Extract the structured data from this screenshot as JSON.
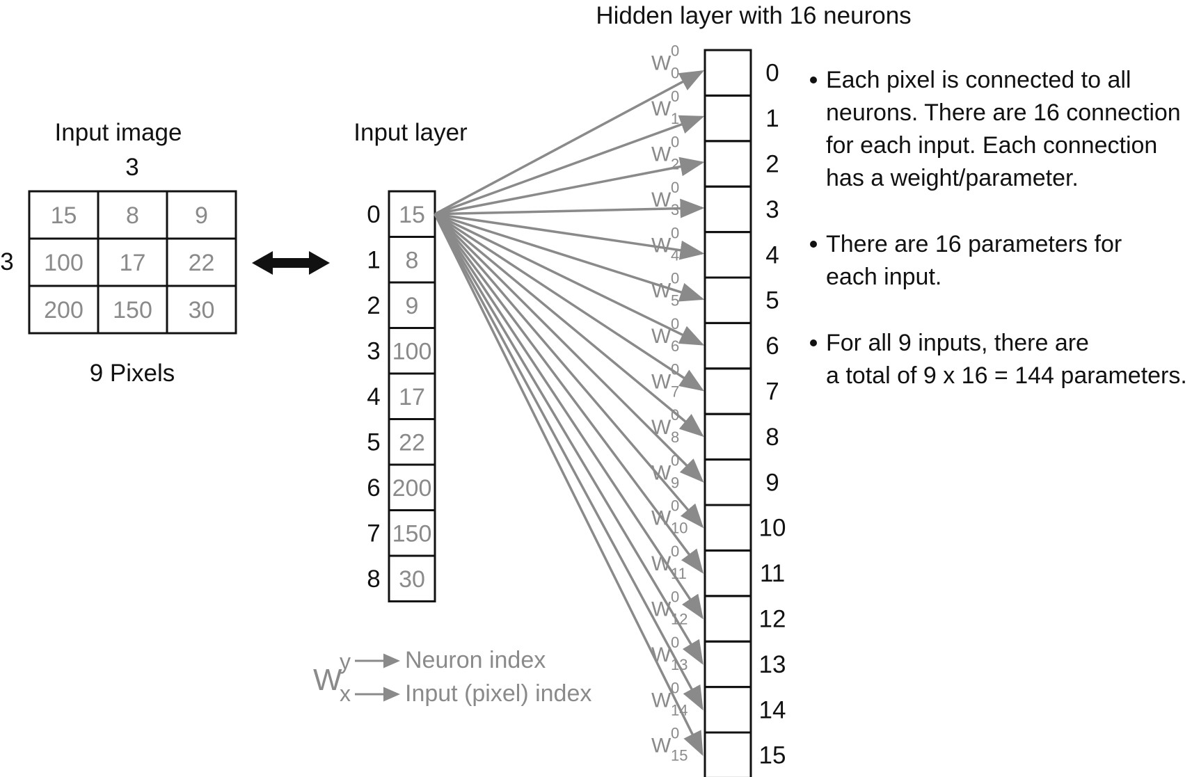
{
  "input_image": {
    "title": "Input image",
    "cols_label": "3",
    "rows_label": "3",
    "caption": "9 Pixels",
    "grid": [
      [
        "15",
        "8",
        "9"
      ],
      [
        "100",
        "17",
        "22"
      ],
      [
        "200",
        "150",
        "30"
      ]
    ]
  },
  "input_layer": {
    "title": "Input layer",
    "indices": [
      "0",
      "1",
      "2",
      "3",
      "4",
      "5",
      "6",
      "7",
      "8"
    ],
    "values": [
      "15",
      "8",
      "9",
      "100",
      "17",
      "22",
      "200",
      "150",
      "30"
    ]
  },
  "hidden_layer": {
    "title": "Hidden layer with 16 neurons",
    "indices": [
      "0",
      "1",
      "2",
      "3",
      "4",
      "5",
      "6",
      "7",
      "8",
      "9",
      "10",
      "11",
      "12",
      "13",
      "14",
      "15"
    ]
  },
  "weight_labels": {
    "symbol": "W",
    "superscript": "0",
    "subscripts": [
      "0",
      "1",
      "2",
      "3",
      "4",
      "5",
      "6",
      "7",
      "8",
      "9",
      "10",
      "11",
      "12",
      "13",
      "14",
      "15"
    ]
  },
  "legend": {
    "symbol": "W",
    "sup": "y",
    "sub": "x",
    "neuron_text": "Neuron index",
    "input_text": "Input (pixel) index"
  },
  "notes": [
    {
      "lines": [
        "Each pixel is connected to all",
        "neurons. There are 16 connection",
        "for each input. Each connection",
        "has a weight/parameter."
      ]
    },
    {
      "lines": [
        "There are 16 parameters for",
        "each input."
      ]
    },
    {
      "lines": [
        "For all 9 inputs, there are",
        "a total of 9 x 16 = 144 parameters."
      ]
    }
  ],
  "colors": {
    "line": "#111111",
    "arrow": "#8a8a8a",
    "gray_text": "#8a8a8a"
  }
}
